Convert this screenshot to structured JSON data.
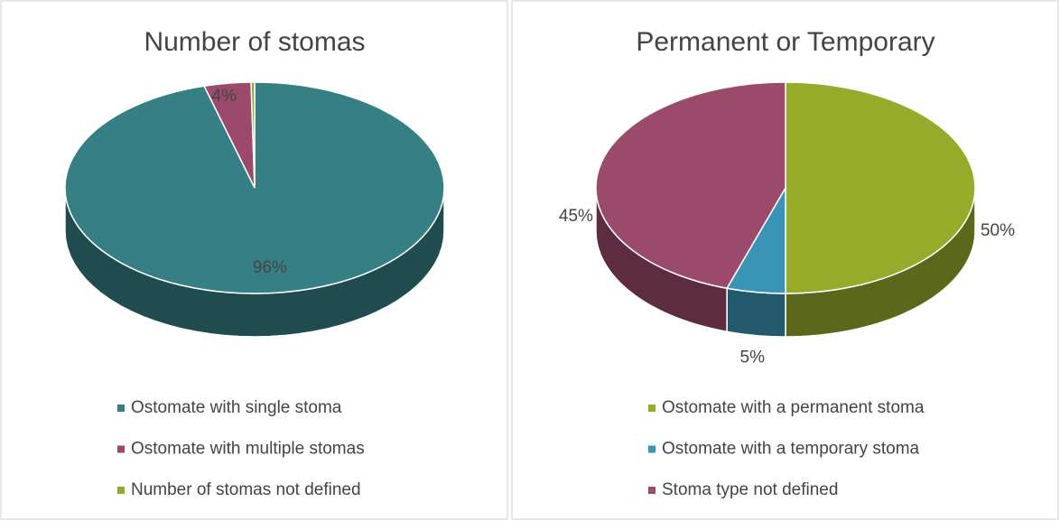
{
  "chart_data": [
    {
      "type": "pie",
      "title": "Number of stomas",
      "categories": [
        "Ostomate with single stoma",
        "Ostomate with multiple stomas",
        "Number of stomas not defined"
      ],
      "values": [
        96,
        4,
        0.3
      ],
      "value_labels": [
        "96%",
        "4%",
        null
      ],
      "colors": [
        "#357f85",
        "#9b4a6b",
        "#8fac2b"
      ],
      "legend": "bottom"
    },
    {
      "type": "pie",
      "title": "Permanent or Temporary",
      "categories": [
        "Ostomate with a permanent stoma",
        "Ostomate with a temporary stoma",
        "Stoma type not defined"
      ],
      "values": [
        50,
        5,
        45
      ],
      "value_labels": [
        "50%",
        "5%",
        "45%"
      ],
      "colors": [
        "#97ab2b",
        "#3a94b6",
        "#9b4a6b"
      ],
      "legend": "bottom"
    }
  ]
}
